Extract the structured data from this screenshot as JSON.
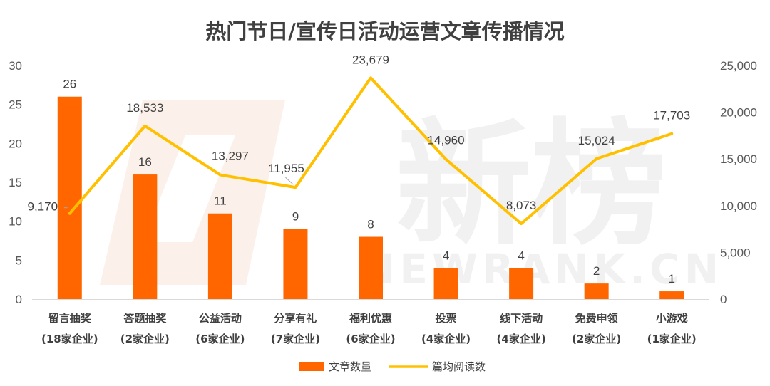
{
  "chart_data": {
    "type": "bar",
    "title": "热门节日/宣传日活动运营文章传播情况",
    "categories": [
      [
        "留言抽奖",
        "(18家企业)"
      ],
      [
        "答题抽奖",
        "(2家企业)"
      ],
      [
        "公益活动",
        "(6家企业)"
      ],
      [
        "分享有礼",
        "(7家企业)"
      ],
      [
        "福利优惠",
        "(6家企业)"
      ],
      [
        "投票",
        "(4家企业)"
      ],
      [
        "线下活动",
        "(4家企业)"
      ],
      [
        "免费申领",
        "(2家企业)"
      ],
      [
        "小游戏",
        "(1家企业)"
      ]
    ],
    "series": [
      {
        "name": "文章数量",
        "type": "bar",
        "axis": "left",
        "color": "#ff6600",
        "values": [
          26,
          16,
          11,
          9,
          8,
          4,
          4,
          2,
          1
        ],
        "labels": [
          "26",
          "16",
          "11",
          "9",
          "8",
          "4",
          "4",
          "2",
          "1"
        ]
      },
      {
        "name": "篇均阅读数",
        "type": "line",
        "axis": "right",
        "color": "#ffc000",
        "values": [
          9170,
          18533,
          13297,
          11955,
          23679,
          14960,
          8073,
          15024,
          17703
        ],
        "labels": [
          "9,170",
          "18,533",
          "13,297",
          "11,955",
          "23,679",
          "14,960",
          "8,073",
          "15,024",
          "17,703"
        ]
      }
    ],
    "y_left": {
      "min": 0,
      "max": 30,
      "ticks": [
        "0",
        "5",
        "10",
        "15",
        "20",
        "25",
        "30"
      ]
    },
    "y_right": {
      "min": 0,
      "max": 25000,
      "ticks": [
        "0",
        "5,000",
        "10,000",
        "15,000",
        "20,000",
        "25,000"
      ]
    },
    "grid": false,
    "legend_position": "bottom",
    "watermark": {
      "brand": "新榜",
      "site": "NEWRANK.CN"
    }
  }
}
